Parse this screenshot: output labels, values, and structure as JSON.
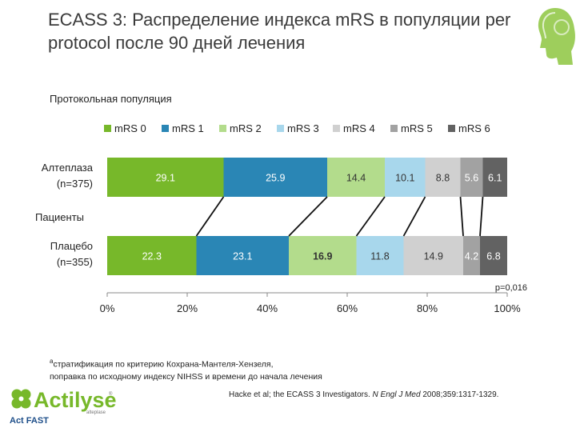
{
  "slide": {
    "title": "ECASS 3: Распределение индекса mRS в популяции per protocol после 90 дней лечения",
    "subtitle": "Протокольная популяция",
    "footnote_marker": "a",
    "footnote_line1": "стратификация по критерию Кохрана-Мантеля-Хензеля,",
    "footnote_line2": "поправка по исходному индексу NIHSS и времени до начала лечения",
    "citation_authors": "Hacke et al; the ECASS 3 Investigators. ",
    "citation_journal": "N Engl J Med",
    "citation_rest": " 2008;359:1317-1329."
  },
  "logo": {
    "brand": "Actilyse",
    "sub": "Act FAST",
    "mark": "®",
    "small": "alteplase",
    "icon": "clover-logo-icon"
  },
  "decor": {
    "icon": "human-head-icon",
    "color": "#8dc63f"
  },
  "chart_data": {
    "type": "bar",
    "orientation": "horizontal",
    "stacked": true,
    "categories": [
      "mRS 0",
      "mRS 1",
      "mRS 2",
      "mRS 3",
      "mRS 4",
      "mRS 5",
      "mRS 6"
    ],
    "colors": [
      "#77b82a",
      "#2a86b5",
      "#b3dc8c",
      "#a8d7ec",
      "#d0d0d0",
      "#a2a2a2",
      "#626262"
    ],
    "text_colors": [
      "#ffffff",
      "#ffffff",
      "#333333",
      "#333333",
      "#333333",
      "#ffffff",
      "#ffffff"
    ],
    "y_label": "Пациенты",
    "series": [
      {
        "name": "Алтеплаза",
        "n": "(n=375)",
        "values": [
          29.1,
          25.9,
          14.4,
          10.1,
          8.8,
          5.6,
          6.1
        ]
      },
      {
        "name": "Плацебо",
        "n": "(n=355)",
        "values": [
          22.3,
          23.1,
          16.9,
          11.8,
          14.9,
          4.2,
          6.8
        ]
      }
    ],
    "xticks": [
      "0%",
      "20%",
      "40%",
      "60%",
      "80%",
      "100%"
    ],
    "xlim": [
      0,
      100
    ],
    "annotation": "p=0,016",
    "legend_position": "top"
  }
}
